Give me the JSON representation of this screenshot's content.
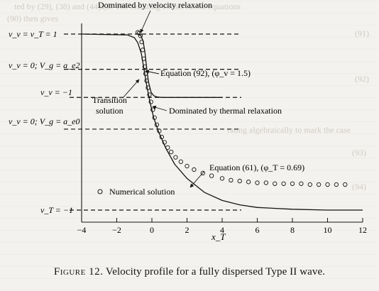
{
  "background_text": [
    "ted by (29), (38) and (44)a,b. The resulting conservation equations",
    "(90) then gives",
    "(91)",
    "(92)",
    "rating algebraically to mark the case",
    "(93)",
    "(94)"
  ],
  "figure": {
    "x_axis_label": "x_T",
    "x_ticks": [
      "−4",
      "−2",
      "0",
      "2",
      "4",
      "6",
      "8",
      "10",
      "12"
    ],
    "y_level_labels": [
      "v_v = v_T = 1",
      "v_v = 0; V_g = a_e2",
      "v_v = −1",
      "v_v = 0; V_g = a_e0",
      "v_T = −1"
    ],
    "annotations": {
      "velocity_relaxation": "Dominated by velocity relaxation",
      "eq92": "Equation (92), (φ_v = 1.5)",
      "transition_line1": "Transition",
      "transition_line2": "solution",
      "thermal_relaxation": "Dominated by thermal relaxation",
      "eq61": "Equation (61), (φ_T = 0.69)",
      "numerical": "Numerical solution"
    }
  },
  "chart_data": {
    "type": "line",
    "xlabel": "x_T",
    "xlim": [
      -4,
      12
    ],
    "ylim": [
      -1.05,
      1.12
    ],
    "x_ticks": [
      -4,
      -2,
      0,
      2,
      4,
      6,
      8,
      10,
      12
    ],
    "reference_levels": [
      {
        "label": "v_v = v_T = 1",
        "y": 1.0
      },
      {
        "label": "v_v = 0; V_g = a_e2",
        "y": 0.6
      },
      {
        "label": "v_v = −1",
        "y": 0.28
      },
      {
        "label": "v_v = 0; V_g = a_e0",
        "y": -0.08
      },
      {
        "label": "v_T = −1",
        "y": -1.0
      }
    ],
    "series": [
      {
        "name": "Equation (61), (φ_T = 0.69)",
        "style": "solid",
        "x": [
          -4.0,
          -1.4,
          -1.0,
          -0.8,
          -0.6,
          -0.45,
          -0.3,
          -0.1,
          0.1,
          0.4,
          0.8,
          1.3,
          2.0,
          3.0,
          4.0,
          5.0,
          6.0,
          8.0,
          10.0,
          12.0
        ],
        "y": [
          1.0,
          0.99,
          0.96,
          0.9,
          0.78,
          0.6,
          0.42,
          0.22,
          0.05,
          -0.12,
          -0.3,
          -0.48,
          -0.64,
          -0.8,
          -0.89,
          -0.94,
          -0.97,
          -0.99,
          -1.0,
          -1.0
        ]
      },
      {
        "name": "Equation (92), (φ_v = 1.5)",
        "style": "solid",
        "x": [
          -0.75,
          -0.62,
          -0.5,
          -0.4,
          -0.3,
          -0.2,
          -0.05,
          0.1,
          0.3,
          0.6,
          1.0,
          2.0,
          4.0
        ],
        "y": [
          1.0,
          0.98,
          0.92,
          0.8,
          0.62,
          0.46,
          0.34,
          0.3,
          0.285,
          0.28,
          0.28,
          0.28,
          0.28
        ]
      },
      {
        "name": "Numerical solution",
        "style": "markers",
        "x": [
          -0.8,
          -0.72,
          -0.65,
          -0.58,
          -0.52,
          -0.46,
          -0.41,
          -0.36,
          -0.3,
          -0.22,
          -0.14,
          -0.05,
          0.05,
          0.15,
          0.28,
          0.42,
          0.56,
          0.72,
          0.9,
          1.1,
          1.35,
          1.65,
          2.0,
          2.4,
          2.9,
          3.4,
          4.0,
          4.5,
          5.0,
          5.5,
          6.0,
          6.5,
          7.0,
          7.5,
          8.0,
          8.5,
          9.0,
          9.5,
          10.0,
          10.5,
          11.0
        ],
        "y": [
          1.02,
          1.01,
          0.98,
          0.91,
          0.82,
          0.72,
          0.63,
          0.55,
          0.47,
          0.39,
          0.31,
          0.23,
          0.14,
          0.05,
          -0.03,
          -0.1,
          -0.17,
          -0.23,
          -0.29,
          -0.34,
          -0.4,
          -0.45,
          -0.5,
          -0.54,
          -0.58,
          -0.61,
          -0.64,
          -0.66,
          -0.67,
          -0.68,
          -0.69,
          -0.69,
          -0.7,
          -0.7,
          -0.7,
          -0.7,
          -0.71,
          -0.71,
          -0.71,
          -0.71,
          -0.71
        ]
      }
    ]
  },
  "caption": {
    "label": "Figure 12.",
    "text": "Velocity profile for a fully dispersed Type II wave."
  }
}
